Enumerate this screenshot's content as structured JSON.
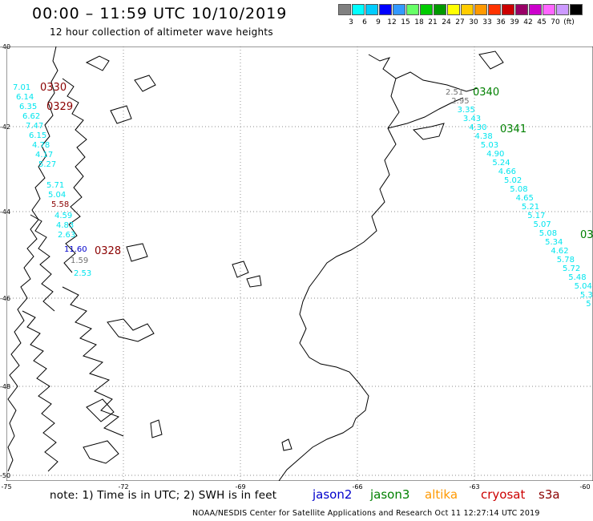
{
  "header": {
    "title": "00:00 – 11:59 UTC 10/10/2019",
    "subtitle": "12 hour collection of altimeter wave heights"
  },
  "scale": {
    "colors": [
      "#808080",
      "#00ffff",
      "#00ccff",
      "#0000ff",
      "#3399ff",
      "#66ff66",
      "#00cc00",
      "#009900",
      "#ffff00",
      "#ffcc00",
      "#ff9900",
      "#ff3300",
      "#cc0000",
      "#990066",
      "#cc00cc",
      "#ff66ff",
      "#cc99ff",
      "#000000"
    ],
    "labels": [
      "3",
      "6",
      "9",
      "12",
      "15",
      "18",
      "21",
      "24",
      "27",
      "30",
      "33",
      "36",
      "39",
      "42",
      "45",
      "70",
      "(ft)"
    ]
  },
  "axes": {
    "lon_labels": [
      "-75",
      "-72",
      "-69",
      "-66",
      "-63",
      "-60"
    ],
    "lat_labels": [
      "-40",
      "-42",
      "-44",
      "-46",
      "-48",
      "-50"
    ]
  },
  "colors": {
    "cyan": "#00e5ee",
    "dark_red": "#8b0000",
    "green": "#008000",
    "gray": "#707070",
    "blue": "#0000cc"
  },
  "track_labels": {
    "t0330": "0330",
    "t0329": "0329",
    "t0328": "0328",
    "t0340": "0340",
    "t0341": "0341",
    "t0342": "03"
  },
  "west_values": [
    "7.01",
    "6.14",
    "6.35",
    "6.62",
    "7.47",
    "6.15",
    "4.78",
    "4.17",
    "5.27",
    "5.71",
    "5.04",
    "5.58",
    "4.59",
    "4.83",
    "2.63",
    "11.60",
    "1.59",
    "2.53"
  ],
  "east_values": [
    "2.51",
    "2.95",
    "3.35",
    "3.43",
    "4.30",
    "4.38",
    "5.03",
    "4.90",
    "5.24",
    "4.66",
    "5.02",
    "5.08",
    "4.65",
    "5.21",
    "5.17",
    "5.07",
    "5.08",
    "5.34",
    "4.62",
    "5.78",
    "5.72",
    "5.48",
    "5.04",
    "5.30",
    "5"
  ],
  "footer": {
    "note": "note: 1) Time is in UTC; 2) SWH is in feet",
    "sources": [
      "jason2",
      "jason3",
      "altika",
      "cryosat",
      "s3a"
    ],
    "credit": "NOAA/NESDIS Center for Satellite Applications and Research    Oct 11 12:27:14 UTC 2019"
  }
}
